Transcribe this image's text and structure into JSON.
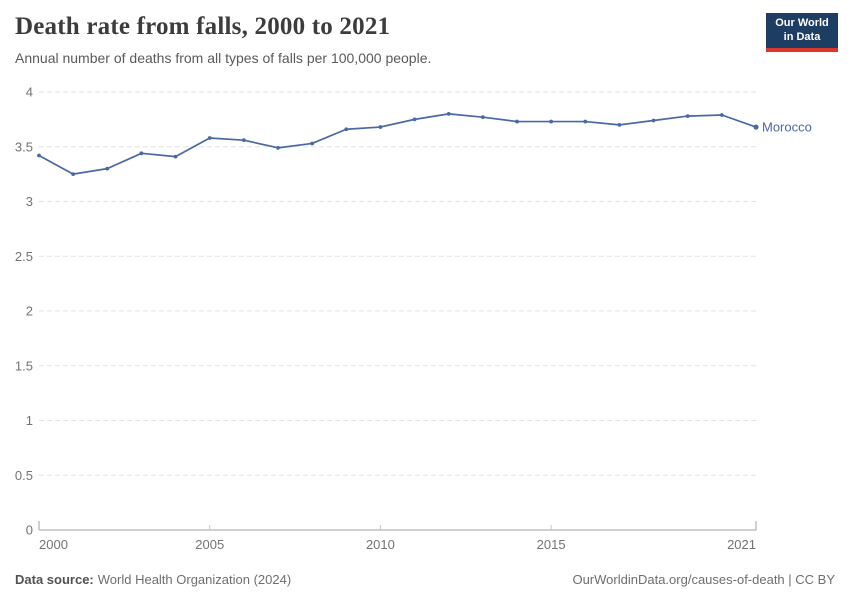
{
  "logo": {
    "line1": "Our World",
    "line2": "in Data",
    "bg_color": "#1d3d63",
    "accent_color": "#dc352c"
  },
  "footer": {
    "datasource_label": "Data source:",
    "datasource_value": "World Health Organization (2024)",
    "credit": "OurWorldinData.org/causes-of-death | CC BY"
  },
  "chart_data": {
    "type": "line",
    "title": "Death rate from falls, 2000 to 2021",
    "subtitle": "Annual number of deaths from all types of falls per 100,000 people.",
    "x": [
      2000,
      2001,
      2002,
      2003,
      2004,
      2005,
      2006,
      2007,
      2008,
      2009,
      2010,
      2011,
      2012,
      2013,
      2014,
      2015,
      2016,
      2017,
      2018,
      2019,
      2020,
      2021
    ],
    "series": [
      {
        "name": "Morocco",
        "color": "#4a68a3",
        "values": [
          3.42,
          3.25,
          3.3,
          3.44,
          3.41,
          3.58,
          3.56,
          3.49,
          3.53,
          3.66,
          3.68,
          3.75,
          3.8,
          3.77,
          3.73,
          3.73,
          3.73,
          3.7,
          3.74,
          3.78,
          3.79,
          3.68
        ]
      }
    ],
    "xlim": [
      2000,
      2021
    ],
    "ylim": [
      0,
      4
    ],
    "x_ticks": [
      2000,
      2005,
      2010,
      2015,
      2021
    ],
    "y_ticks": [
      0,
      0.5,
      1,
      1.5,
      2,
      2.5,
      3,
      3.5,
      4
    ],
    "grid": "horizontal-dashed",
    "legend": "line-end-label",
    "grid_color": "#e2e2e2",
    "axis_color": "#a1a1a1",
    "tick_label_color": "#737373"
  }
}
